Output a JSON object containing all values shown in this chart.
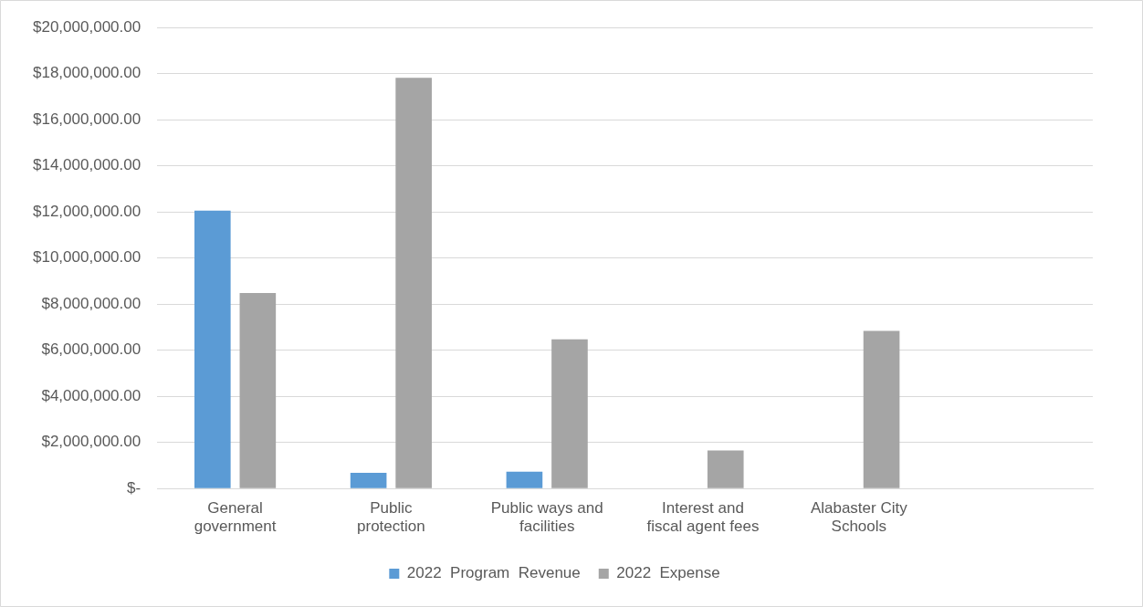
{
  "chart_data": {
    "type": "bar",
    "categories": [
      "General government",
      "Public protection",
      "Public ways and facilities",
      "Interest and fiscal agent fees",
      "Alabaster City Schools",
      null
    ],
    "series": [
      {
        "name": "2022  Program  Revenue",
        "color": "#5b9bd5",
        "values": [
          12050000,
          680000,
          730000,
          null,
          null,
          null
        ]
      },
      {
        "name": "2022  Expense",
        "color": "#a5a5a5",
        "values": [
          8480000,
          17810000,
          6470000,
          1650000,
          6840000,
          null
        ]
      }
    ],
    "ylim": [
      0,
      20000000
    ],
    "yticks": [
      {
        "value": 0,
        "label": "$-"
      },
      {
        "value": 2000000,
        "label": "$2,000,000.00"
      },
      {
        "value": 4000000,
        "label": "$4,000,000.00"
      },
      {
        "value": 6000000,
        "label": "$6,000,000.00"
      },
      {
        "value": 8000000,
        "label": "$8,000,000.00"
      },
      {
        "value": 10000000,
        "label": "$10,000,000.00"
      },
      {
        "value": 12000000,
        "label": "$12,000,000.00"
      },
      {
        "value": 14000000,
        "label": "$14,000,000.00"
      },
      {
        "value": 16000000,
        "label": "$16,000,000.00"
      },
      {
        "value": 18000000,
        "label": "$18,000,000.00"
      },
      {
        "value": 20000000,
        "label": "$20,000,000.00"
      }
    ],
    "grid": "y",
    "legend": "bottom"
  }
}
